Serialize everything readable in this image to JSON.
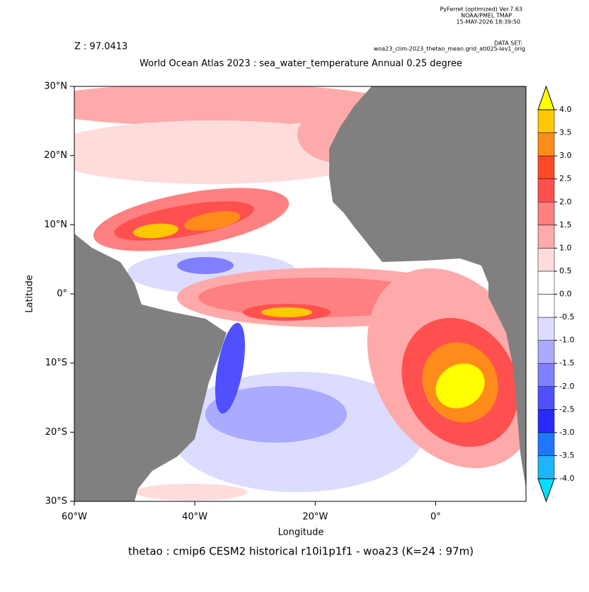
{
  "header": {
    "software": "PyFerret (optimized) Ver.7.63",
    "org": "NOAA/PMEL TMAP",
    "date": "15-MAY-2026 18:39:50",
    "dataset_label": "DATA SET:",
    "dataset": "woa23_clim-2023_thetao_mean.grid_atl025-lev1_orig"
  },
  "chart_data": {
    "type": "heatmap",
    "z_label": "Z : 97.0413",
    "title": "World Ocean Atlas 2023 : sea_water_temperature Annual  0.25 degree",
    "xlabel": "Longitude",
    "ylabel": "Latitude",
    "caption": "thetao : cmip6 CESM2 historical r10i1p1f1 - woa23  (K=24 : 97m)",
    "xlim": [
      -60,
      15
    ],
    "ylim": [
      -30,
      30
    ],
    "xticks": [
      {
        "value": -60,
        "label": "60°W"
      },
      {
        "value": -40,
        "label": "40°W"
      },
      {
        "value": -20,
        "label": "20°W"
      },
      {
        "value": 0,
        "label": "0°"
      }
    ],
    "yticks": [
      {
        "value": -30,
        "label": "30°S"
      },
      {
        "value": -20,
        "label": "20°S"
      },
      {
        "value": -10,
        "label": "10°S"
      },
      {
        "value": 0,
        "label": "0°"
      },
      {
        "value": 10,
        "label": "10°N"
      },
      {
        "value": 20,
        "label": "20°N"
      },
      {
        "value": 30,
        "label": "30°N"
      }
    ],
    "colorbar": {
      "levels": [
        {
          "value": -4,
          "label": "-4.0"
        },
        {
          "value": -3.5,
          "label": "-3.5"
        },
        {
          "value": -3,
          "label": "-3.0"
        },
        {
          "value": -2.5,
          "label": "-2.5"
        },
        {
          "value": -2,
          "label": "-2.0"
        },
        {
          "value": -1.5,
          "label": "-1.5"
        },
        {
          "value": -1,
          "label": "-1.0"
        },
        {
          "value": -0.5,
          "label": "-0.5"
        },
        {
          "value": 0,
          "label": "0.0"
        },
        {
          "value": 0.5,
          "label": "0.5"
        },
        {
          "value": 1,
          "label": "1.0"
        },
        {
          "value": 1.5,
          "label": "1.5"
        },
        {
          "value": 2,
          "label": "2.0"
        },
        {
          "value": 2.5,
          "label": "2.5"
        },
        {
          "value": 3,
          "label": "3.0"
        },
        {
          "value": 3.5,
          "label": "3.5"
        },
        {
          "value": 4,
          "label": "4.0"
        }
      ],
      "colors": [
        "#00e0ff",
        "#1eb4ff",
        "#1e78ff",
        "#2a2aff",
        "#5050ff",
        "#8080ff",
        "#aaaaff",
        "#dcdcff",
        "#ffffff",
        "#ffffff",
        "#ffdcdc",
        "#ffaaaa",
        "#ff8080",
        "#ff5050",
        "#ff4a2a",
        "#ff8c1a",
        "#ffc800",
        "#ffff00"
      ]
    },
    "land_color": "#808080"
  }
}
